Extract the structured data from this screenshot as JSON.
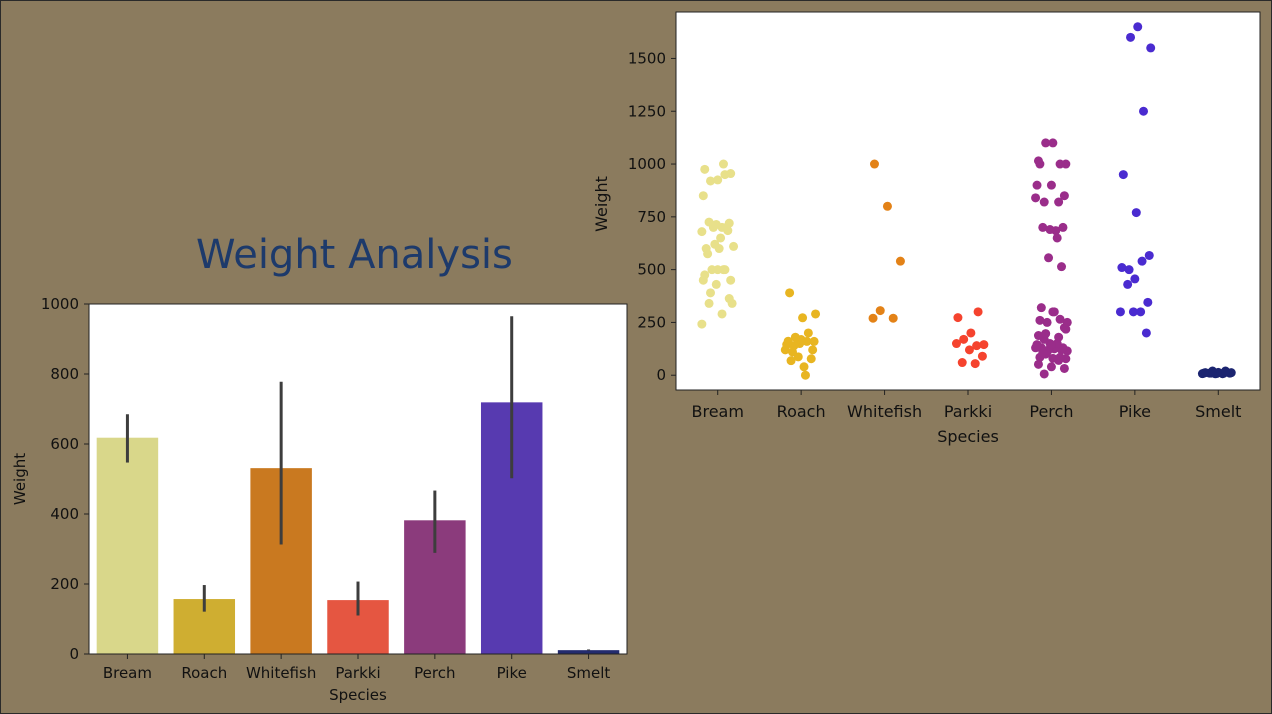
{
  "page": {
    "title": "Weight Analysis",
    "background": "#8b7b5e",
    "title_color": "#1d3a6b"
  },
  "chart_data": [
    {
      "type": "bar",
      "xlabel": "Species",
      "ylabel": "Weight",
      "ylim": [
        0,
        1000
      ],
      "yticks": [
        0,
        200,
        400,
        600,
        800,
        1000
      ],
      "categories": [
        "Bream",
        "Roach",
        "Whitefish",
        "Parkki",
        "Perch",
        "Pike",
        "Smelt"
      ],
      "values": [
        618,
        157,
        531,
        154,
        382,
        719,
        11
      ],
      "error_low": [
        547,
        121,
        313,
        110,
        289,
        502,
        10
      ],
      "error_high": [
        685,
        197,
        778,
        207,
        467,
        965,
        13
      ],
      "colors": [
        "#d9d78a",
        "#cfae31",
        "#c97920",
        "#e55641",
        "#8b3b7c",
        "#573ab0",
        "#232b6e"
      ]
    },
    {
      "type": "scatter",
      "xlabel": "Species",
      "ylabel": "Weight",
      "ylim": [
        -70,
        1720
      ],
      "yticks": [
        0,
        250,
        500,
        750,
        1000,
        1250,
        1500
      ],
      "categories": [
        "Bream",
        "Roach",
        "Whitefish",
        "Parkki",
        "Perch",
        "Pike",
        "Smelt"
      ],
      "colors": [
        "#e8e08a",
        "#e8b521",
        "#e38217",
        "#f5432e",
        "#9a2d8a",
        "#4a2bd0",
        "#1b2470"
      ],
      "points": [
        [
          242,
          290,
          340,
          363,
          430,
          450,
          500,
          390,
          450,
          500,
          475,
          500,
          500,
          340,
          600,
          600,
          700,
          700,
          610,
          650,
          575,
          685,
          620,
          680,
          700,
          725,
          720,
          714,
          850,
          1000,
          920,
          955,
          925,
          975,
          950
        ],
        [
          40,
          69,
          78,
          87,
          120,
          0,
          110,
          120,
          150,
          145,
          160,
          140,
          160,
          169,
          161,
          200,
          180,
          290,
          272,
          390
        ],
        [
          270,
          270,
          306,
          540,
          800,
          1000
        ],
        [
          55,
          60,
          90,
          120,
          150,
          140,
          170,
          145,
          200,
          273,
          300
        ],
        [
          5.9,
          32,
          40,
          51.5,
          70,
          100,
          78,
          80,
          85,
          85,
          110,
          115,
          125,
          130,
          120,
          120,
          130,
          135,
          110,
          130,
          150,
          145,
          150,
          170,
          225,
          145,
          188,
          180,
          197,
          218,
          300,
          260,
          265,
          250,
          250,
          300,
          320,
          514,
          556,
          840,
          685,
          700,
          700,
          690,
          900,
          650,
          820,
          850,
          900,
          1015,
          820,
          1100,
          1000,
          1100,
          1000,
          1000
        ],
        [
          200,
          300,
          300,
          300,
          430,
          345,
          456,
          510,
          540,
          500,
          567,
          770,
          950,
          1250,
          1600,
          1550,
          1650
        ],
        [
          6.7,
          7.5,
          7,
          9.7,
          9.8,
          8.7,
          10,
          9.9,
          9.8,
          12.2,
          13.4,
          12.2,
          19.7,
          19.9
        ]
      ]
    }
  ]
}
